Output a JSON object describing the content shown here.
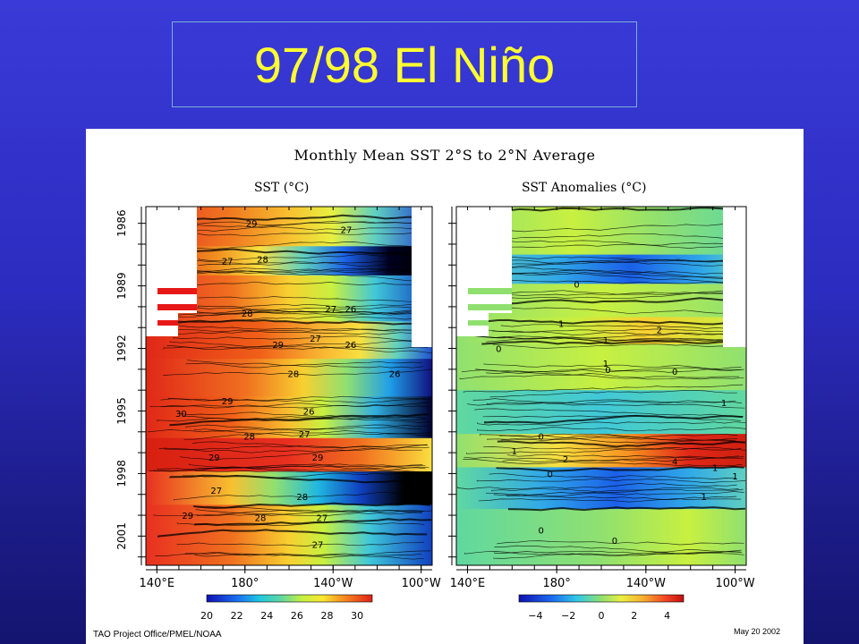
{
  "slide": {
    "title": "97/98 El Niño"
  },
  "figure": {
    "title": "Monthly Mean SST  2°S to 2°N Average",
    "credit": "TAO Project Office/PMEL/NOAA",
    "date": "May 20 2002"
  },
  "chart_data": [
    {
      "type": "heatmap",
      "title": "SST (°C)",
      "x_ticks": [
        "140°E",
        "180°",
        "140°W",
        "100°W"
      ],
      "y_ticks": [
        "1986",
        "1989",
        "1992",
        "1995",
        "1998",
        "2001"
      ],
      "colorbar": {
        "min": 20,
        "max": 31,
        "ticks": [
          "20",
          "22",
          "24",
          "26",
          "28",
          "30"
        ]
      },
      "contour_labels": [
        {
          "label": "29",
          "lon": 183,
          "year": 1986.5
        },
        {
          "label": "27",
          "lon": 226,
          "year": 1986.8
        },
        {
          "label": "27",
          "lon": 172,
          "year": 1988.3
        },
        {
          "label": "28",
          "lon": 188,
          "year": 1988.2
        },
        {
          "label": "28",
          "lon": 181,
          "year": 1990.8
        },
        {
          "label": "27",
          "lon": 219,
          "year": 1990.6
        },
        {
          "label": "26",
          "lon": 228,
          "year": 1990.6
        },
        {
          "label": "27",
          "lon": 212,
          "year": 1992.0
        },
        {
          "label": "29",
          "lon": 195,
          "year": 1992.3
        },
        {
          "label": "26",
          "lon": 228,
          "year": 1992.3
        },
        {
          "label": "28",
          "lon": 202,
          "year": 1993.7
        },
        {
          "label": "26",
          "lon": 248,
          "year": 1993.7
        },
        {
          "label": "29",
          "lon": 172,
          "year": 1995.0
        },
        {
          "label": "26",
          "lon": 209,
          "year": 1995.5
        },
        {
          "label": "30",
          "lon": 151,
          "year": 1995.6
        },
        {
          "label": "28",
          "lon": 182,
          "year": 1996.7
        },
        {
          "label": "27",
          "lon": 207,
          "year": 1996.6
        },
        {
          "label": "29",
          "lon": 166,
          "year": 1997.7
        },
        {
          "label": "29",
          "lon": 213,
          "year": 1997.7
        },
        {
          "label": "27",
          "lon": 167,
          "year": 1999.3
        },
        {
          "label": "28",
          "lon": 206,
          "year": 1999.6
        },
        {
          "label": "29",
          "lon": 154,
          "year": 2000.5
        },
        {
          "label": "28",
          "lon": 187,
          "year": 2000.6
        },
        {
          "label": "27",
          "lon": 215,
          "year": 2000.6
        },
        {
          "label": "27",
          "lon": 213,
          "year": 2001.9
        }
      ]
    },
    {
      "type": "heatmap",
      "title": "SST Anomalies (°C)",
      "x_ticks": [
        "140°E",
        "180°",
        "140°W",
        "100°W"
      ],
      "y_ticks": [
        "1986",
        "1989",
        "1992",
        "1995",
        "1998",
        "2001"
      ],
      "colorbar": {
        "min": -5,
        "max": 5,
        "ticks": [
          "−4",
          "−2",
          "0",
          "2",
          "4"
        ]
      },
      "contour_labels": [
        {
          "label": "0",
          "lon": 189,
          "year": 1989.4
        },
        {
          "label": "1",
          "lon": 182,
          "year": 1991.3
        },
        {
          "label": "2",
          "lon": 226,
          "year": 1991.6
        },
        {
          "label": "1",
          "lon": 202,
          "year": 1992.1
        },
        {
          "label": "0",
          "lon": 154,
          "year": 1992.5
        },
        {
          "label": "1",
          "lon": 202,
          "year": 1993.2
        },
        {
          "label": "0",
          "lon": 203,
          "year": 1993.5
        },
        {
          "label": "0",
          "lon": 233,
          "year": 1993.6
        },
        {
          "label": "1",
          "lon": 255,
          "year": 1995.1
        },
        {
          "label": "0",
          "lon": 173,
          "year": 1996.7
        },
        {
          "label": "1",
          "lon": 161,
          "year": 1997.4
        },
        {
          "label": "2",
          "lon": 184,
          "year": 1997.8
        },
        {
          "label": "4",
          "lon": 233,
          "year": 1997.9
        },
        {
          "label": "1",
          "lon": 251,
          "year": 1998.2
        },
        {
          "label": "0",
          "lon": 177,
          "year": 1998.5
        },
        {
          "label": "1",
          "lon": 260,
          "year": 1998.6
        },
        {
          "label": "1",
          "lon": 246,
          "year": 1999.6
        },
        {
          "label": "0",
          "lon": 173,
          "year": 2001.2
        },
        {
          "label": "0",
          "lon": 206,
          "year": 2001.7
        }
      ]
    }
  ]
}
